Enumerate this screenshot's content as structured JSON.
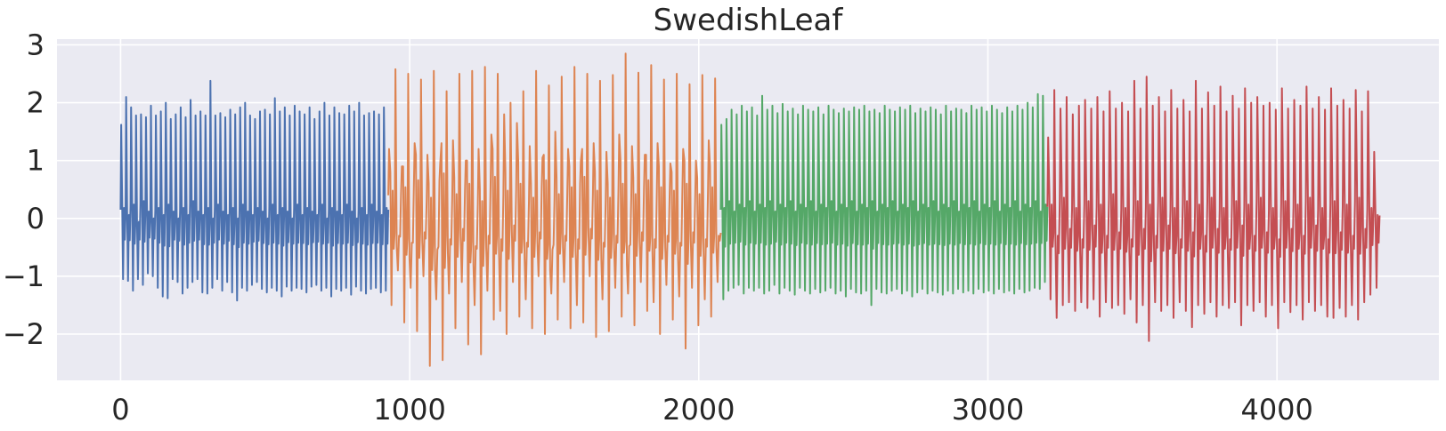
{
  "chart_data": {
    "type": "line",
    "title": "SwedishLeaf",
    "xlabel": "",
    "ylabel": "",
    "xlim": [
      -220,
      4560
    ],
    "ylim": [
      -2.8,
      3.1
    ],
    "xticks": [
      0,
      1000,
      2000,
      3000,
      4000
    ],
    "xtick_labels": [
      "0",
      "1000",
      "2000",
      "3000",
      "4000"
    ],
    "yticks": [
      -2,
      -1,
      0,
      1,
      2,
      3
    ],
    "ytick_labels": [
      "−2",
      "−1",
      "0",
      "1",
      "2",
      "3"
    ],
    "grid": true,
    "background": "#EAEAF2",
    "gridColor": "#ffffff",
    "series": [
      {
        "color": "#4C72B0",
        "x_range": [
          0,
          926
        ],
        "cycles": 54,
        "peaks": [
          1.62,
          2.1,
          1.92,
          1.78,
          1.8,
          1.75,
          1.95,
          1.78,
          1.85,
          2.0,
          1.72,
          1.8,
          1.92,
          1.75,
          2.05,
          1.78,
          1.85,
          1.78,
          2.38,
          1.78,
          1.82,
          1.75,
          1.88,
          1.8,
          1.92,
          2.0,
          1.78,
          1.72,
          1.85,
          1.88,
          1.8,
          2.08,
          1.85,
          1.92,
          1.78,
          1.95,
          1.85,
          1.8,
          1.92,
          1.72,
          1.85,
          2.0,
          1.78,
          1.92,
          1.82,
          1.8,
          1.95,
          1.85,
          2.0,
          1.78,
          1.82,
          1.85,
          1.8,
          1.92
        ],
        "troughs": [
          -1.05,
          -1.08,
          -1.25,
          -1.05,
          -1.15,
          -0.95,
          -1.0,
          -1.2,
          -1.35,
          -1.38,
          -1.05,
          -1.1,
          -1.3,
          -1.2,
          -1.1,
          -1.05,
          -1.28,
          -1.3,
          -1.2,
          -1.05,
          -1.25,
          -1.1,
          -1.28,
          -1.42,
          -1.2,
          -1.25,
          -1.15,
          -1.1,
          -1.22,
          -1.28,
          -1.2,
          -1.25,
          -1.35,
          -1.18,
          -1.25,
          -1.2,
          -1.22,
          -1.28,
          -1.18,
          -1.15,
          -1.25,
          -1.2,
          -1.35,
          -1.22,
          -1.25,
          -1.2,
          -1.32,
          -1.18,
          -1.25,
          -1.3,
          -1.22,
          -1.2,
          -1.28,
          -1.25
        ],
        "mids": [
          0.3,
          0.1,
          0.4,
          -0.1,
          0.5,
          0.2,
          0.0,
          0.3,
          0.1,
          0.4,
          0.2,
          0.0,
          0.3,
          0.1,
          0.5,
          0.2,
          0.1,
          0.3,
          0.0,
          0.4,
          0.2,
          0.1,
          0.3,
          0.0,
          0.4,
          0.2,
          0.1,
          0.3,
          0.2,
          0.0,
          0.4,
          0.1,
          0.3,
          0.2,
          0.0,
          0.4,
          0.1,
          0.3,
          0.2,
          0.1,
          0.4,
          0.0,
          0.3,
          0.2,
          0.1,
          0.4,
          0.2,
          0.0,
          0.3,
          0.1,
          0.4,
          0.2,
          0.1,
          0.3
        ]
      },
      {
        "color": "#DD8452",
        "x_range": [
          926,
          2076
        ],
        "cycles": 52,
        "peaks": [
          1.2,
          2.58,
          0.9,
          2.5,
          1.3,
          2.4,
          1.1,
          2.55,
          0.95,
          2.2,
          1.35,
          2.5,
          1.0,
          2.55,
          1.2,
          2.62,
          1.45,
          2.5,
          1.8,
          2.0,
          1.65,
          2.2,
          1.25,
          2.55,
          1.05,
          2.3,
          1.5,
          2.45,
          1.2,
          2.62,
          1.0,
          2.5,
          1.3,
          2.38,
          1.15,
          2.48,
          1.45,
          2.85,
          1.25,
          2.52,
          1.1,
          2.65,
          1.3,
          2.4,
          0.95,
          2.5,
          1.2,
          2.32,
          1.0,
          2.48,
          1.35,
          2.42
        ],
        "troughs": [
          -1.5,
          -0.9,
          -1.8,
          -1.2,
          -1.95,
          -1.0,
          -2.55,
          -1.4,
          -2.45,
          -1.3,
          -1.9,
          -1.1,
          -2.18,
          -1.5,
          -2.35,
          -1.25,
          -1.75,
          -1.6,
          -2.0,
          -1.1,
          -1.7,
          -1.4,
          -1.9,
          -1.0,
          -2.0,
          -1.3,
          -1.75,
          -1.1,
          -1.9,
          -1.5,
          -1.8,
          -1.0,
          -2.05,
          -1.4,
          -1.95,
          -1.2,
          -1.7,
          -1.3,
          -1.85,
          -1.1,
          -1.6,
          -1.45,
          -2.0,
          -1.15,
          -1.75,
          -1.35,
          -2.25,
          -1.2,
          -1.85,
          -1.4,
          -1.7,
          -1.1
        ],
        "mids": [
          0.8,
          -0.5,
          0.9,
          -0.7,
          1.1,
          -0.4,
          0.6,
          -0.9,
          1.3,
          -0.6,
          0.7,
          -0.3,
          1.0,
          -0.8,
          0.5,
          -0.5,
          1.2,
          -0.6,
          0.8,
          -0.2,
          1.0,
          -0.7,
          0.6,
          -0.4,
          1.1,
          -0.9,
          0.7,
          -0.5,
          0.9,
          -0.6,
          1.2,
          -0.3,
          0.8,
          -0.7,
          0.6,
          -0.5,
          1.0,
          -0.8,
          0.7,
          -0.4,
          1.1,
          -0.6,
          0.9,
          -0.5,
          0.8,
          -0.7,
          1.0,
          -0.4,
          0.7,
          -0.6,
          0.9,
          -0.5
        ]
      },
      {
        "color": "#55A868",
        "x_range": [
          2076,
          3206
        ],
        "cycles": 64,
        "peaks": [
          1.62,
          1.72,
          1.88,
          1.8,
          1.95,
          1.85,
          1.92,
          1.78,
          2.12,
          1.88,
          1.95,
          1.82,
          1.98,
          1.85,
          1.9,
          1.8,
          1.95,
          1.88,
          1.85,
          1.92,
          1.8,
          1.95,
          1.88,
          1.82,
          1.9,
          1.85,
          1.92,
          1.88,
          1.95,
          1.85,
          1.88,
          1.82,
          1.95,
          1.88,
          1.85,
          1.92,
          1.88,
          1.95,
          1.82,
          1.9,
          1.85,
          1.92,
          1.88,
          1.8,
          1.95,
          1.85,
          1.9,
          1.88,
          1.82,
          1.95,
          1.88,
          1.92,
          1.85,
          1.95,
          1.88,
          1.82,
          1.92,
          1.85,
          1.95,
          1.88,
          2.0,
          1.92,
          2.15,
          2.12
        ],
        "troughs": [
          -1.4,
          -1.25,
          -1.2,
          -1.15,
          -1.3,
          -1.2,
          -1.25,
          -1.2,
          -1.3,
          -1.25,
          -1.15,
          -1.3,
          -1.2,
          -1.25,
          -1.32,
          -1.2,
          -1.25,
          -1.3,
          -1.22,
          -1.28,
          -1.25,
          -1.2,
          -1.3,
          -1.25,
          -1.35,
          -1.22,
          -1.28,
          -1.3,
          -1.25,
          -1.5,
          -1.22,
          -1.28,
          -1.3,
          -1.25,
          -1.22,
          -1.3,
          -1.25,
          -1.35,
          -1.28,
          -1.22,
          -1.3,
          -1.25,
          -1.28,
          -1.32,
          -1.25,
          -1.3,
          -1.22,
          -1.28,
          -1.25,
          -1.3,
          -1.22,
          -1.28,
          -1.25,
          -1.3,
          -1.22,
          -1.28,
          -1.25,
          -1.3,
          -1.22,
          -1.28,
          -1.25,
          -1.2,
          -1.22,
          -1.1
        ],
        "mids": [
          0.3,
          0.5,
          0.2,
          0.4,
          0.3,
          0.5,
          0.2,
          0.4,
          0.3,
          0.5,
          0.2,
          0.4,
          0.3,
          0.5,
          0.2,
          0.4,
          0.3,
          0.5,
          0.2,
          0.4,
          0.3,
          0.5,
          0.2,
          0.4,
          0.3,
          0.5,
          0.2,
          0.4,
          0.3,
          0.5,
          0.2,
          0.4,
          0.3,
          0.5,
          0.2,
          0.4,
          0.3,
          0.5,
          0.2,
          0.4,
          0.3,
          0.5,
          0.2,
          0.4,
          0.3,
          0.5,
          0.2,
          0.4,
          0.3,
          0.5,
          0.2,
          0.4,
          0.3,
          0.5,
          0.2,
          0.4,
          0.3,
          0.5,
          0.2,
          0.4,
          0.3,
          0.5,
          0.2,
          0.4
        ]
      },
      {
        "color": "#C44E52",
        "x_range": [
          3206,
          4355
        ],
        "cycles": 54,
        "peaks": [
          1.4,
          2.22,
          1.9,
          2.1,
          1.8,
          1.95,
          2.05,
          1.9,
          2.1,
          1.85,
          2.2,
          1.9,
          2.0,
          1.85,
          2.38,
          1.9,
          2.45,
          1.95,
          2.1,
          1.85,
          2.22,
          1.9,
          2.05,
          1.85,
          2.38,
          1.9,
          2.18,
          1.95,
          2.28,
          1.85,
          2.12,
          1.9,
          2.25,
          2.0,
          2.1,
          1.95,
          2.0,
          1.88,
          2.25,
          1.9,
          2.05,
          1.95,
          2.28,
          1.9,
          2.1,
          1.88,
          2.25,
          1.95,
          2.05,
          1.9,
          2.22,
          1.85,
          2.2,
          1.15
        ],
        "troughs": [
          -1.4,
          -1.72,
          -1.5,
          -1.45,
          -1.6,
          -1.45,
          -1.55,
          -1.4,
          -1.7,
          -1.45,
          -1.55,
          -1.5,
          -1.65,
          -1.4,
          -1.8,
          -1.5,
          -2.12,
          -1.45,
          -1.6,
          -1.5,
          -1.72,
          -1.45,
          -1.6,
          -1.88,
          -1.5,
          -1.65,
          -1.45,
          -1.7,
          -1.5,
          -1.55,
          -1.45,
          -1.85,
          -1.5,
          -1.6,
          -1.45,
          -1.7,
          -1.5,
          -1.9,
          -1.45,
          -1.62,
          -1.5,
          -1.75,
          -1.45,
          -1.6,
          -1.5,
          -1.7,
          -1.72,
          -1.55,
          -1.7,
          -1.5,
          -1.75,
          -1.45,
          -1.32,
          -1.2
        ],
        "mids": [
          0.4,
          -0.5,
          0.6,
          -0.3,
          0.3,
          -0.6,
          0.5,
          -0.2,
          0.4,
          -0.5,
          0.7,
          -0.4,
          0.3,
          -0.6,
          0.5,
          -0.3,
          0.4,
          -0.5,
          0.6,
          -0.2,
          0.3,
          -0.6,
          0.5,
          -0.4,
          0.4,
          -0.5,
          0.6,
          -0.3,
          0.3,
          -0.6,
          0.5,
          -0.2,
          0.4,
          -0.5,
          0.6,
          -0.4,
          0.3,
          -0.6,
          0.5,
          -0.3,
          0.4,
          -0.5,
          0.6,
          -0.2,
          0.3,
          -0.6,
          0.5,
          -0.4,
          0.4,
          -0.5,
          0.6,
          -0.3,
          0.3,
          0.1
        ]
      }
    ]
  }
}
